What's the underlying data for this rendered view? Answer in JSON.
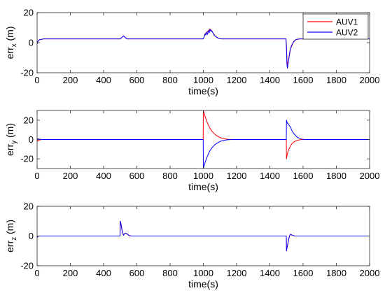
{
  "chart_data": [
    {
      "type": "line",
      "ylabel": {
        "base": "err",
        "sub": "x",
        "unit": " (m)"
      },
      "xlabel": "time(s)",
      "xlim": [
        0,
        2000
      ],
      "ylim": [
        -20,
        20
      ],
      "xticks": [
        0,
        200,
        400,
        600,
        800,
        1000,
        1200,
        1400,
        1600,
        1800,
        2000
      ],
      "yticks": [
        -20,
        0,
        20
      ],
      "legend": {
        "placement": "top-right",
        "entries": [
          "AUV1",
          "AUV2"
        ]
      },
      "series": [
        {
          "name": "AUV1",
          "color": "#ff0000",
          "points": [
            [
              0,
              0
            ],
            [
              5,
              1
            ],
            [
              15,
              2
            ],
            [
              40,
              2.5
            ],
            [
              500,
              2.5
            ],
            [
              510,
              3.5
            ],
            [
              520,
              4.5
            ],
            [
              530,
              3.5
            ],
            [
              540,
              2.5
            ],
            [
              1000,
              2.5
            ],
            [
              1005,
              4
            ],
            [
              1012,
              6
            ],
            [
              1020,
              7
            ],
            [
              1030,
              8
            ],
            [
              1040,
              9
            ],
            [
              1050,
              8
            ],
            [
              1060,
              6
            ],
            [
              1075,
              4
            ],
            [
              1090,
              3
            ],
            [
              1110,
              2.5
            ],
            [
              1497,
              2.5
            ],
            [
              1500,
              -2
            ],
            [
              1503,
              -12
            ],
            [
              1508,
              -15
            ],
            [
              1515,
              -10
            ],
            [
              1525,
              -4
            ],
            [
              1540,
              0
            ],
            [
              1555,
              2
            ],
            [
              1580,
              2.5
            ],
            [
              2000,
              2.5
            ]
          ]
        },
        {
          "name": "AUV2",
          "color": "#0000ff",
          "points": [
            [
              0,
              -1
            ],
            [
              5,
              1
            ],
            [
              15,
              2
            ],
            [
              40,
              2.5
            ],
            [
              500,
              2.5
            ],
            [
              510,
              3.5
            ],
            [
              520,
              4.5
            ],
            [
              530,
              3.5
            ],
            [
              540,
              2.5
            ],
            [
              1000,
              2.5
            ],
            [
              1005,
              4
            ],
            [
              1010,
              6
            ],
            [
              1015,
              5
            ],
            [
              1020,
              7
            ],
            [
              1025,
              5.5
            ],
            [
              1030,
              8
            ],
            [
              1035,
              6.5
            ],
            [
              1040,
              9
            ],
            [
              1045,
              7.5
            ],
            [
              1050,
              8
            ],
            [
              1058,
              6.5
            ],
            [
              1065,
              5
            ],
            [
              1075,
              4
            ],
            [
              1090,
              3
            ],
            [
              1110,
              2.5
            ],
            [
              1497,
              2.5
            ],
            [
              1500,
              -4
            ],
            [
              1503,
              -15
            ],
            [
              1506,
              -17
            ],
            [
              1512,
              -12
            ],
            [
              1520,
              -6
            ],
            [
              1530,
              -2
            ],
            [
              1545,
              1
            ],
            [
              1560,
              2.2
            ],
            [
              1580,
              2.5
            ],
            [
              2000,
              2.5
            ]
          ]
        }
      ]
    },
    {
      "type": "line",
      "ylabel": {
        "base": "err",
        "sub": "y",
        "unit": " (m)"
      },
      "xlabel": "time(s)",
      "xlim": [
        0,
        2000
      ],
      "ylim": [
        -30,
        30
      ],
      "xticks": [
        0,
        200,
        400,
        600,
        800,
        1000,
        1200,
        1400,
        1600,
        1800,
        2000
      ],
      "yticks": [
        -20,
        0,
        20
      ],
      "series": [
        {
          "name": "AUV1",
          "color": "#ff0000",
          "points": [
            [
              0,
              0
            ],
            [
              4,
              -1.5
            ],
            [
              15,
              -0.5
            ],
            [
              30,
              0
            ],
            [
              999,
              0
            ],
            [
              1000,
              30
            ],
            [
              1010,
              24
            ],
            [
              1020,
              19
            ],
            [
              1030,
              15
            ],
            [
              1040,
              11.5
            ],
            [
              1050,
              9
            ],
            [
              1060,
              7
            ],
            [
              1070,
              5.3
            ],
            [
              1080,
              4
            ],
            [
              1090,
              3
            ],
            [
              1100,
              2
            ],
            [
              1115,
              1.2
            ],
            [
              1130,
              0.6
            ],
            [
              1150,
              0.2
            ],
            [
              1180,
              0
            ],
            [
              1499,
              0
            ],
            [
              1500,
              -20
            ],
            [
              1505,
              -15
            ],
            [
              1512,
              -11
            ],
            [
              1520,
              -8
            ],
            [
              1530,
              -5
            ],
            [
              1540,
              -3
            ],
            [
              1555,
              -1.5
            ],
            [
              1570,
              -0.6
            ],
            [
              1590,
              0
            ],
            [
              2000,
              0
            ]
          ]
        },
        {
          "name": "AUV2",
          "color": "#0000ff",
          "points": [
            [
              0,
              0
            ],
            [
              4,
              0.8
            ],
            [
              15,
              0.3
            ],
            [
              30,
              0
            ],
            [
              999,
              0
            ],
            [
              1000,
              -30
            ],
            [
              1010,
              -24
            ],
            [
              1020,
              -19
            ],
            [
              1030,
              -15
            ],
            [
              1040,
              -11.5
            ],
            [
              1050,
              -9
            ],
            [
              1060,
              -7
            ],
            [
              1070,
              -5.3
            ],
            [
              1080,
              -4
            ],
            [
              1090,
              -3
            ],
            [
              1100,
              -2
            ],
            [
              1115,
              -1.2
            ],
            [
              1130,
              -0.6
            ],
            [
              1150,
              -0.2
            ],
            [
              1180,
              0
            ],
            [
              1499,
              0
            ],
            [
              1500,
              20
            ],
            [
              1505,
              17
            ],
            [
              1512,
              16
            ],
            [
              1518,
              14
            ],
            [
              1525,
              13
            ],
            [
              1530,
              10
            ],
            [
              1540,
              7
            ],
            [
              1550,
              5
            ],
            [
              1560,
              3
            ],
            [
              1575,
              1.5
            ],
            [
              1590,
              0.5
            ],
            [
              1610,
              0
            ],
            [
              2000,
              0
            ]
          ]
        }
      ]
    },
    {
      "type": "line",
      "ylabel": {
        "base": "err",
        "sub": "z",
        "unit": " (m)"
      },
      "xlabel": "time(s)",
      "xlim": [
        0,
        2000
      ],
      "ylim": [
        -20,
        20
      ],
      "xticks": [
        0,
        200,
        400,
        600,
        800,
        1000,
        1200,
        1400,
        1600,
        1800,
        2000
      ],
      "yticks": [
        -20,
        0,
        20
      ],
      "series": [
        {
          "name": "AUV1",
          "color": "#ff0000",
          "points": [
            [
              0,
              -1
            ],
            [
              8,
              0
            ],
            [
              40,
              0
            ],
            [
              499,
              0
            ],
            [
              500,
              10
            ],
            [
              505,
              8
            ],
            [
              512,
              3
            ],
            [
              520,
              0.5
            ],
            [
              527,
              1.8
            ],
            [
              535,
              2
            ],
            [
              545,
              1
            ],
            [
              555,
              0.2
            ],
            [
              570,
              0
            ],
            [
              1499,
              0
            ],
            [
              1500,
              -10
            ],
            [
              1505,
              -7
            ],
            [
              1512,
              -3
            ],
            [
              1518,
              0
            ],
            [
              1525,
              1.2
            ],
            [
              1535,
              0.5
            ],
            [
              1550,
              0
            ],
            [
              2000,
              0
            ]
          ]
        },
        {
          "name": "AUV2",
          "color": "#0000ff",
          "points": [
            [
              0,
              -1
            ],
            [
              8,
              0
            ],
            [
              40,
              0
            ],
            [
              499,
              0
            ],
            [
              500,
              10
            ],
            [
              505,
              8
            ],
            [
              512,
              3
            ],
            [
              520,
              0.5
            ],
            [
              527,
              1.8
            ],
            [
              535,
              2
            ],
            [
              545,
              1
            ],
            [
              555,
              0.2
            ],
            [
              570,
              0
            ],
            [
              1499,
              0
            ],
            [
              1500,
              -10
            ],
            [
              1505,
              -7
            ],
            [
              1512,
              -3
            ],
            [
              1518,
              0
            ],
            [
              1525,
              1.2
            ],
            [
              1535,
              0.5
            ],
            [
              1550,
              0
            ],
            [
              2000,
              0
            ]
          ]
        }
      ]
    }
  ]
}
